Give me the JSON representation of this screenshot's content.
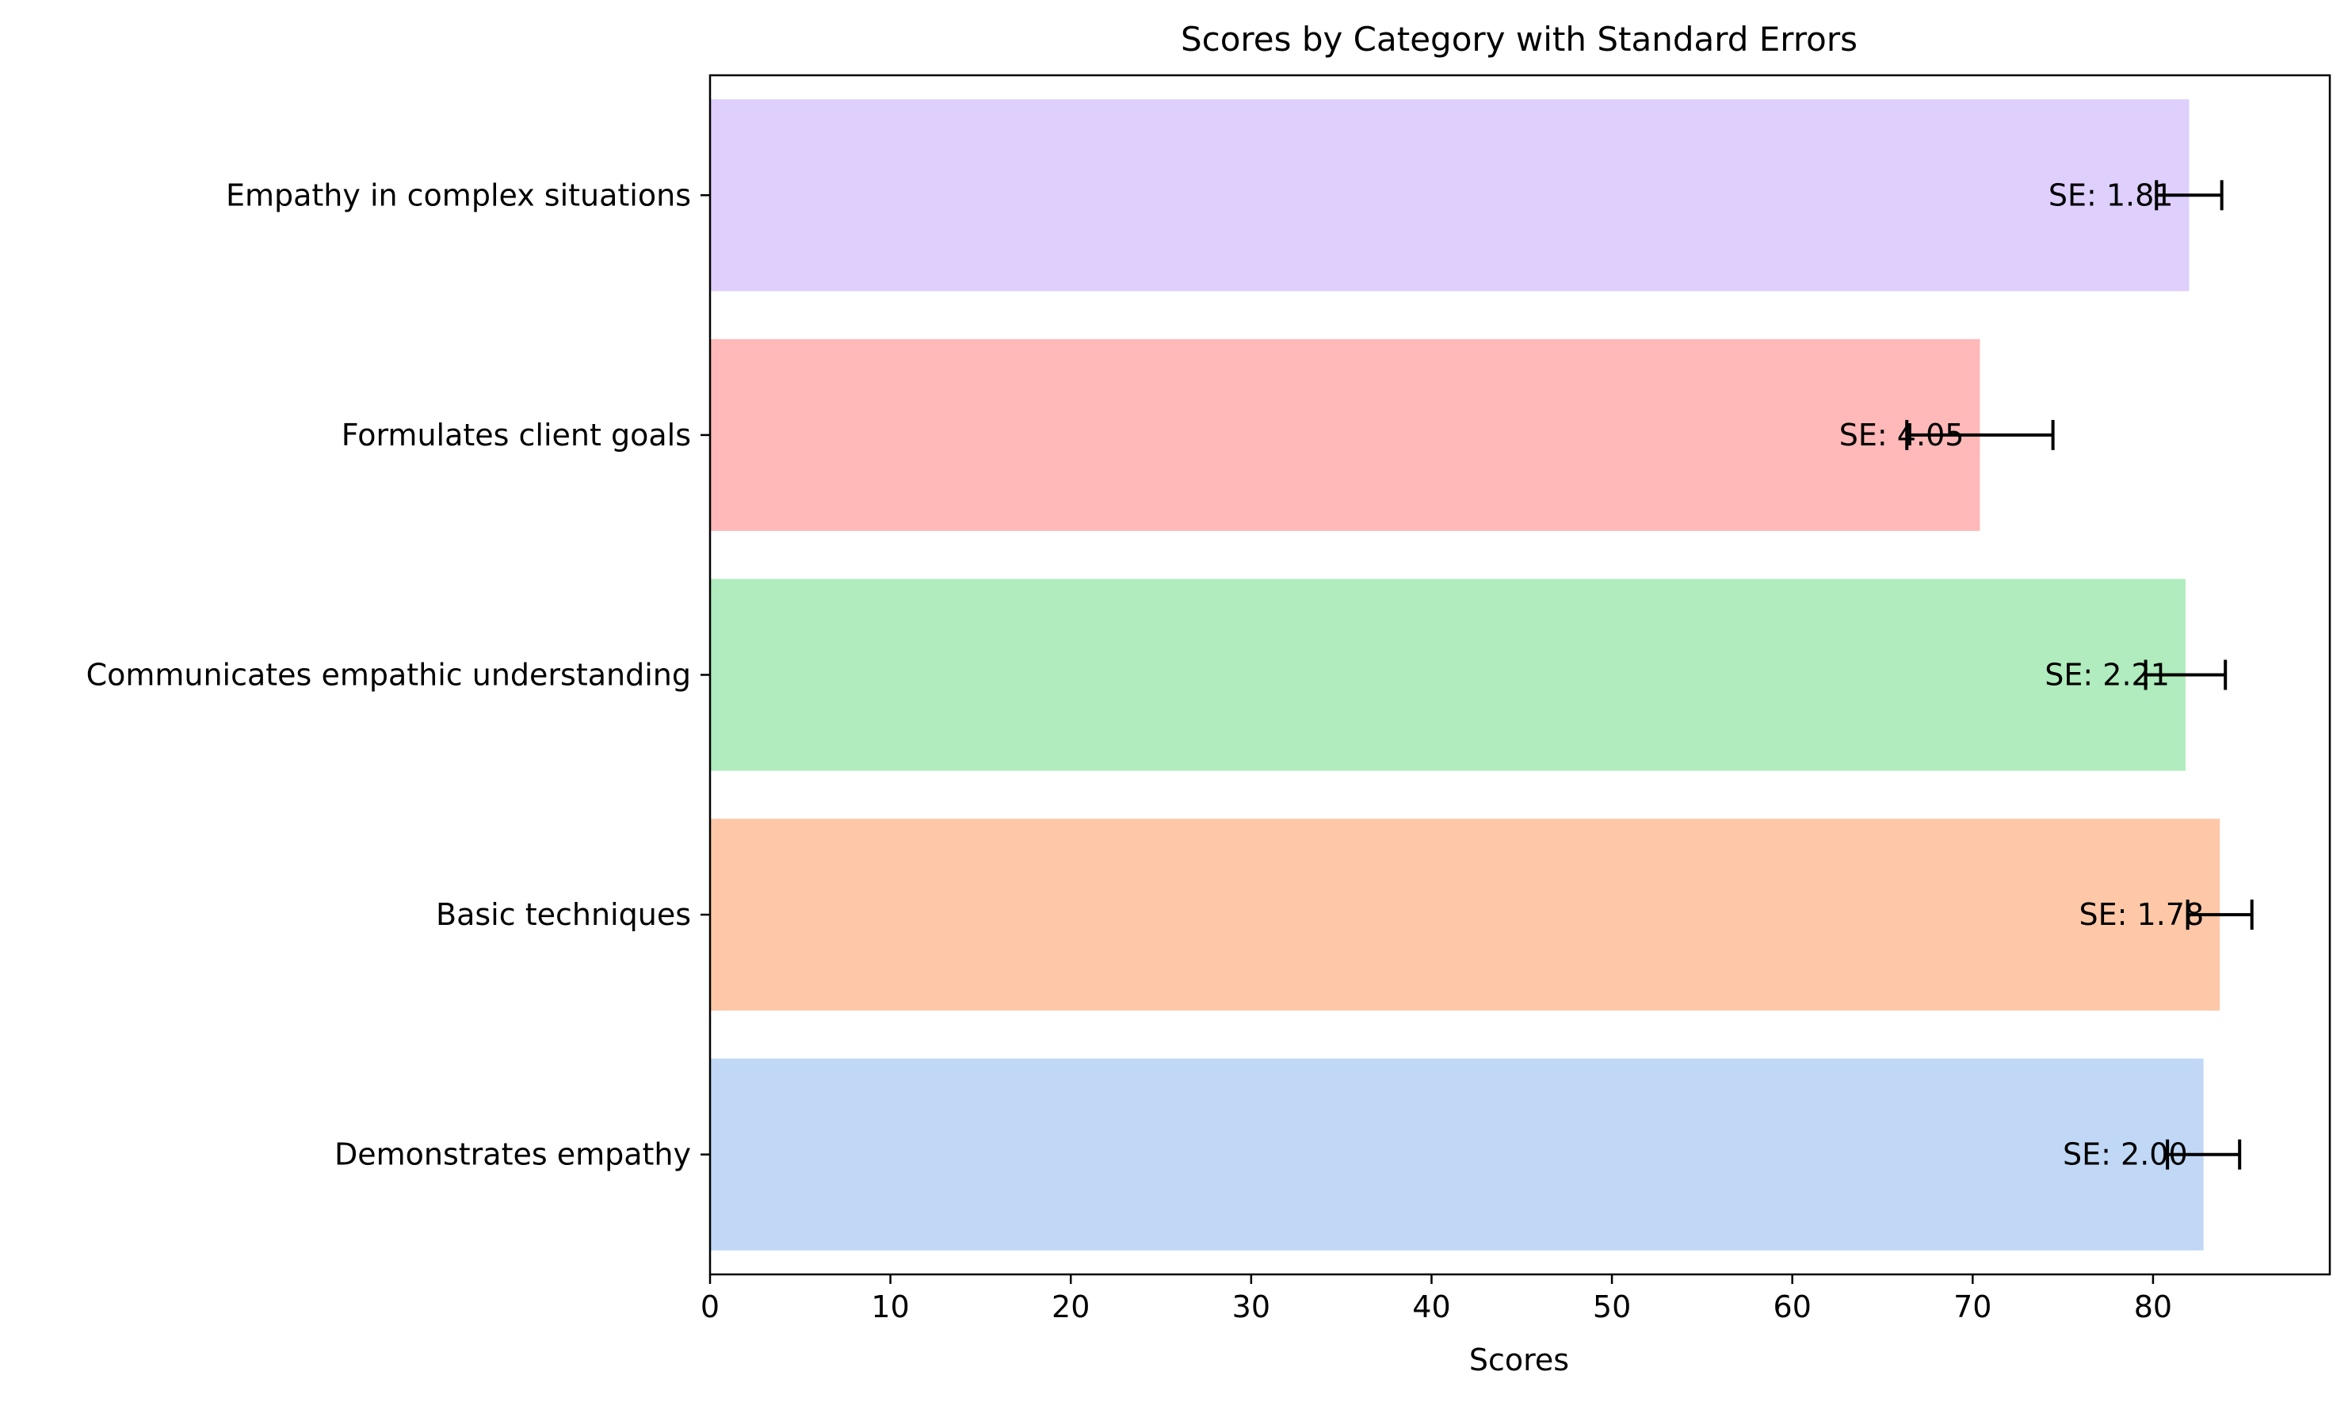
{
  "chart_data": {
    "type": "bar",
    "orientation": "horizontal",
    "title": "Scores by Category with Standard Errors",
    "xlabel": "Scores",
    "ylabel": "",
    "xlim": [
      0,
      89.8
    ],
    "xticks": [
      0,
      10,
      20,
      30,
      40,
      50,
      60,
      70,
      80
    ],
    "grid": false,
    "categories": [
      "Demonstrates empathy",
      "Basic techniques",
      "Communicates empathic understanding",
      "Formulates client goals",
      "Empathy in complex situations"
    ],
    "values": [
      82.8,
      83.7,
      81.8,
      70.4,
      82.0
    ],
    "errors": [
      2.0,
      1.78,
      2.21,
      4.05,
      1.81
    ],
    "error_labels": [
      "SE: 2.00",
      "SE: 1.78",
      "SE: 2.21",
      "SE: 4.05",
      "SE: 1.81"
    ],
    "colors": [
      "#c0d8f6",
      "#fec8a8",
      "#b0ecbd",
      "#ffb9b8",
      "#dfcffd"
    ]
  }
}
